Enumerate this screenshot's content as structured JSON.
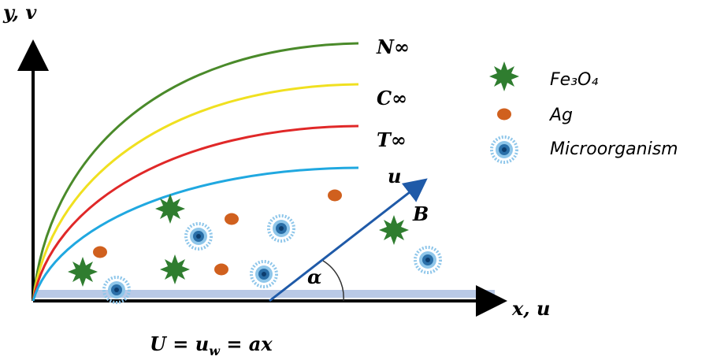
{
  "axes": {
    "y_label": "y, v",
    "x_label": "x, u"
  },
  "curves": [
    "N∞",
    "C∞",
    "T∞",
    "u"
  ],
  "field_label": "B",
  "angle_label": "α",
  "legend": [
    "Fe₃O₄",
    "Ag",
    "Microorganism"
  ],
  "equation": {
    "lhs": "U = u",
    "sub": "w",
    "rhs": " = ax"
  }
}
